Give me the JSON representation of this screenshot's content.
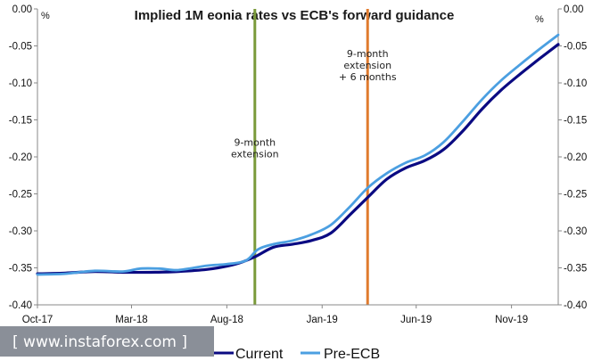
{
  "chart_data": {
    "type": "line",
    "title": "Implied 1M eonia rates vs ECB's forward guidance",
    "left_unit": "%",
    "right_unit": "%",
    "ylim": [
      -0.4,
      0.0
    ],
    "y_ticks": [
      0.0,
      -0.05,
      -0.1,
      -0.15,
      -0.2,
      -0.25,
      -0.3,
      -0.35,
      -0.4
    ],
    "y_tick_labels": [
      "0.00",
      "-0.05",
      "-0.10",
      "-0.15",
      "-0.20",
      "-0.25",
      "-0.30",
      "-0.35",
      "-0.40"
    ],
    "x_range": [
      "2017-10-01",
      "2020-01-15"
    ],
    "x_ticks": [
      {
        "date": "2017-10-01",
        "label": "Oct-17"
      },
      {
        "date": "2018-03-01",
        "label": "Mar-18"
      },
      {
        "date": "2018-08-01",
        "label": "Aug-18"
      },
      {
        "date": "2019-01-01",
        "label": "Jan-19"
      },
      {
        "date": "2019-06-01",
        "label": "Jun-19"
      },
      {
        "date": "2019-11-01",
        "label": "Nov-19"
      }
    ],
    "series": [
      {
        "name": "Current",
        "color": "#0a0a82",
        "points": [
          [
            "2017-10-01",
            -0.358
          ],
          [
            "2017-11-15",
            -0.357
          ],
          [
            "2018-01-01",
            -0.355
          ],
          [
            "2018-02-15",
            -0.356
          ],
          [
            "2018-04-01",
            -0.356
          ],
          [
            "2018-05-15",
            -0.355
          ],
          [
            "2018-07-01",
            -0.352
          ],
          [
            "2018-08-15",
            -0.345
          ],
          [
            "2018-09-15",
            -0.335
          ],
          [
            "2018-10-15",
            -0.322
          ],
          [
            "2018-11-15",
            -0.318
          ],
          [
            "2018-12-15",
            -0.313
          ],
          [
            "2019-01-15",
            -0.303
          ],
          [
            "2019-02-15",
            -0.278
          ],
          [
            "2019-03-15",
            -0.255
          ],
          [
            "2019-04-15",
            -0.23
          ],
          [
            "2019-05-15",
            -0.215
          ],
          [
            "2019-06-15",
            -0.205
          ],
          [
            "2019-07-15",
            -0.19
          ],
          [
            "2019-08-15",
            -0.165
          ],
          [
            "2019-09-15",
            -0.135
          ],
          [
            "2019-10-15",
            -0.11
          ],
          [
            "2019-11-15",
            -0.088
          ],
          [
            "2019-12-15",
            -0.068
          ],
          [
            "2020-01-15",
            -0.048
          ]
        ]
      },
      {
        "name": "Pre-ECB",
        "color": "#4b9fe1",
        "points": [
          [
            "2017-10-01",
            -0.359
          ],
          [
            "2017-11-15",
            -0.358
          ],
          [
            "2018-01-01",
            -0.354
          ],
          [
            "2018-02-15",
            -0.355
          ],
          [
            "2018-03-15",
            -0.351
          ],
          [
            "2018-04-15",
            -0.351
          ],
          [
            "2018-05-15",
            -0.353
          ],
          [
            "2018-07-01",
            -0.347
          ],
          [
            "2018-08-01",
            -0.345
          ],
          [
            "2018-09-01",
            -0.34
          ],
          [
            "2018-09-20",
            -0.325
          ],
          [
            "2018-10-15",
            -0.318
          ],
          [
            "2018-11-15",
            -0.313
          ],
          [
            "2018-12-15",
            -0.305
          ],
          [
            "2019-01-15",
            -0.292
          ],
          [
            "2019-02-15",
            -0.267
          ],
          [
            "2019-03-15",
            -0.242
          ],
          [
            "2019-04-15",
            -0.222
          ],
          [
            "2019-05-15",
            -0.208
          ],
          [
            "2019-06-15",
            -0.198
          ],
          [
            "2019-07-15",
            -0.18
          ],
          [
            "2019-08-15",
            -0.152
          ],
          [
            "2019-09-15",
            -0.122
          ],
          [
            "2019-10-15",
            -0.097
          ],
          [
            "2019-11-15",
            -0.075
          ],
          [
            "2019-12-15",
            -0.055
          ],
          [
            "2020-01-15",
            -0.035
          ]
        ]
      }
    ],
    "vertical_lines": [
      {
        "date": "2018-09-15",
        "color": "#7a9a3a",
        "label": [
          "9-month",
          "extension"
        ],
        "label_y": -0.185
      },
      {
        "date": "2019-03-15",
        "color": "#e07b2e",
        "label": [
          "9-month",
          "extension",
          "+ 6 months"
        ],
        "label_y": -0.065
      }
    ],
    "legend": {
      "position": "bottom-right"
    },
    "grid": false
  },
  "watermark": "[ www.instaforex.com ]"
}
